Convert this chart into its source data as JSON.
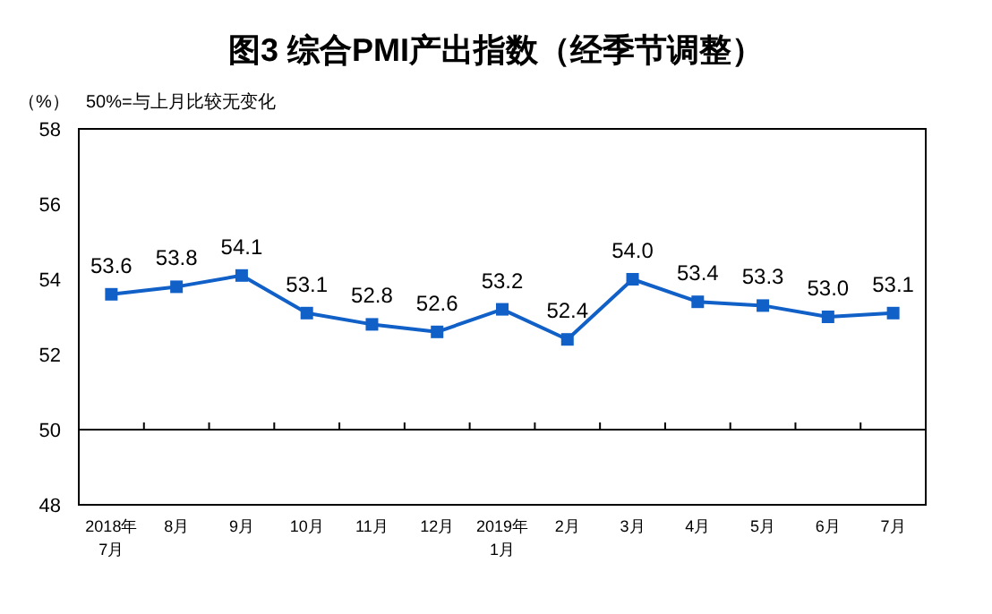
{
  "chart_data": {
    "type": "line",
    "title": "图3 综合PMI产出指数（经季节调整）",
    "ylabel": "（%）",
    "annotations": [
      "50%=与上月比较无变化"
    ],
    "categories": [
      "2018年\n7月",
      "8月",
      "9月",
      "10月",
      "11月",
      "12月",
      "2019年\n1月",
      "2月",
      "3月",
      "4月",
      "5月",
      "6月",
      "7月"
    ],
    "series": [
      {
        "color": "#1060c8",
        "values": [
          53.6,
          53.8,
          54.1,
          53.1,
          52.8,
          52.6,
          53.2,
          52.4,
          54.0,
          53.4,
          53.3,
          53.0,
          53.1
        ],
        "value_labels": [
          "53.6",
          "53.8",
          "54.1",
          "53.1",
          "52.8",
          "52.6",
          "53.2",
          "52.4",
          "54.0",
          "53.4",
          "53.3",
          "53.0",
          "53.1"
        ]
      }
    ],
    "ylim": [
      48,
      58
    ],
    "yticks": [
      48,
      50,
      52,
      54,
      56,
      58
    ],
    "ref_lines": [
      {
        "axis": "y",
        "value": 50,
        "color": "#000000"
      }
    ],
    "marker": "square",
    "grid": false
  }
}
